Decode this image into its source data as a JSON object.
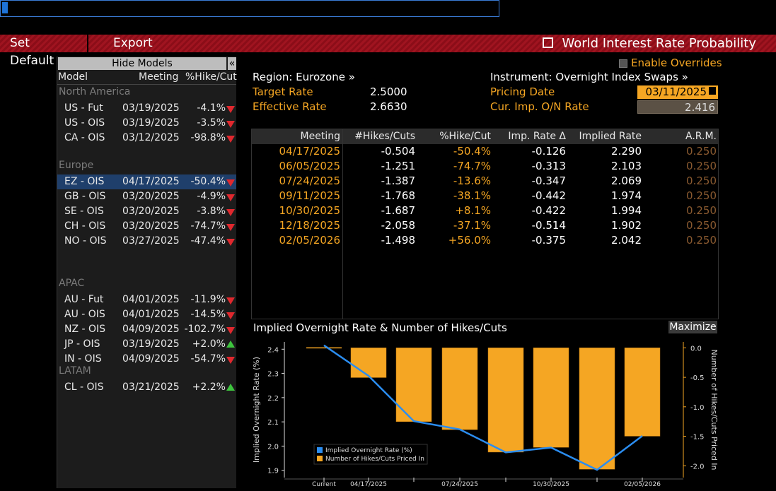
{
  "menu": {
    "set_default": "Set Default",
    "export": "Export",
    "title": "World Interest Rate Probability"
  },
  "left": {
    "hide_models": "Hide Models",
    "collapse": "«",
    "headers": {
      "model": "Model",
      "meeting": "Meeting",
      "pct": "%Hike/Cut"
    },
    "groups": [
      {
        "name": "North America",
        "rows": [
          {
            "model": "US - Fut",
            "date": "03/19/2025",
            "pct": "-4.1%",
            "dir": "down"
          },
          {
            "model": "US - OIS",
            "date": "03/19/2025",
            "pct": "-3.5%",
            "dir": "down"
          },
          {
            "model": "CA - OIS",
            "date": "03/12/2025",
            "pct": "-98.8%",
            "dir": "down"
          }
        ]
      },
      {
        "name": "Europe",
        "rows": [
          {
            "model": "EZ - OIS",
            "date": "04/17/2025",
            "pct": "-50.4%",
            "dir": "down",
            "selected": true
          },
          {
            "model": "GB - OIS",
            "date": "03/20/2025",
            "pct": "-4.9%",
            "dir": "down"
          },
          {
            "model": "SE - OIS",
            "date": "03/20/2025",
            "pct": "-3.8%",
            "dir": "down"
          },
          {
            "model": "CH - OIS",
            "date": "03/20/2025",
            "pct": "-74.7%",
            "dir": "down"
          },
          {
            "model": "NO - OIS",
            "date": "03/27/2025",
            "pct": "-47.4%",
            "dir": "down"
          }
        ]
      },
      {
        "name": "APAC",
        "rows": [
          {
            "model": "AU - Fut",
            "date": "04/01/2025",
            "pct": "-11.9%",
            "dir": "down"
          },
          {
            "model": "AU - OIS",
            "date": "04/01/2025",
            "pct": "-14.5%",
            "dir": "down"
          },
          {
            "model": "NZ - OIS",
            "date": "04/09/2025",
            "pct": "-102.7%",
            "dir": "down"
          },
          {
            "model": "JP - OIS",
            "date": "03/19/2025",
            "pct": "+2.0%",
            "dir": "up"
          },
          {
            "model": "IN - OIS",
            "date": "04/09/2025",
            "pct": "-54.7%",
            "dir": "down"
          }
        ]
      },
      {
        "name": "LATAM",
        "rows": [
          {
            "model": "CL - OIS",
            "date": "03/21/2025",
            "pct": "+2.2%",
            "dir": "up"
          }
        ]
      }
    ]
  },
  "info": {
    "region": "Region: Eurozone »",
    "instrument": "Instrument: Overnight Index Swaps »",
    "enable_overrides": "Enable Overrides",
    "target_rate_label": "Target Rate",
    "target_rate": "2.5000",
    "effective_rate_label": "Effective Rate",
    "effective_rate": "2.6630",
    "pricing_date_label": "Pricing Date",
    "pricing_date": "03/11/2025",
    "cur_imp_label": "Cur. Imp. O/N Rate",
    "cur_imp": "2.416"
  },
  "table": {
    "headers": [
      "Meeting",
      "#Hikes/Cuts",
      "%Hike/Cut",
      "Imp. Rate Δ",
      "Implied Rate",
      "A.R.M."
    ],
    "rows": [
      [
        "04/17/2025",
        "-0.504",
        "-50.4%",
        "-0.126",
        "2.290",
        "0.250"
      ],
      [
        "06/05/2025",
        "-1.251",
        "-74.7%",
        "-0.313",
        "2.103",
        "0.250"
      ],
      [
        "07/24/2025",
        "-1.387",
        "-13.6%",
        "-0.347",
        "2.069",
        "0.250"
      ],
      [
        "09/11/2025",
        "-1.768",
        "-38.1%",
        "-0.442",
        "1.974",
        "0.250"
      ],
      [
        "10/30/2025",
        "-1.687",
        "+8.1%",
        "-0.422",
        "1.994",
        "0.250"
      ],
      [
        "12/18/2025",
        "-2.058",
        "-37.1%",
        "-0.514",
        "1.902",
        "0.250"
      ],
      [
        "02/05/2026",
        "-1.498",
        "+56.0%",
        "-0.375",
        "2.042",
        "0.250"
      ]
    ]
  },
  "chart_title": "Implied Overnight Rate & Number of Hikes/Cuts",
  "maximize": "Maximize",
  "colors": {
    "orange": "#f5a623",
    "line": "#2b8df0",
    "red": "#e0282e",
    "green": "#3ec43e"
  },
  "chart_data": {
    "type": "bar",
    "categories": [
      "Current",
      "04/17/2025",
      "06/05/2025",
      "07/24/2025",
      "09/11/2025",
      "10/30/2025",
      "12/18/2025",
      "02/05/2026"
    ],
    "x_tick_labels": [
      "Current",
      "04/17/2025",
      "07/24/2025",
      "10/30/2025",
      "02/05/2026"
    ],
    "series": [
      {
        "name": "Implied Overnight Rate (%)",
        "type": "line",
        "axis": "left",
        "values": [
          2.416,
          2.29,
          2.103,
          2.069,
          1.974,
          1.994,
          1.902,
          2.042
        ]
      },
      {
        "name": "Number of Hikes/Cuts Priced In",
        "type": "bar",
        "axis": "right",
        "values": [
          0,
          -0.504,
          -1.251,
          -1.387,
          -1.768,
          -1.687,
          -2.058,
          -1.498
        ]
      }
    ],
    "ylabel_left": "Implied Overnight Rate (%)",
    "ylabel_right": "Number of Hikes/Cuts Priced In",
    "ylim_left": [
      1.87,
      2.43
    ],
    "yticks_left": [
      "2.4",
      "2.3",
      "2.2",
      "2.1",
      "2.0",
      "1.9"
    ],
    "ylim_right": [
      -2.2,
      0.1
    ],
    "yticks_right": [
      "0.0",
      "-0.5",
      "-1.0",
      "-1.5",
      "-2.0"
    ],
    "legend_position": "bottom-left"
  }
}
